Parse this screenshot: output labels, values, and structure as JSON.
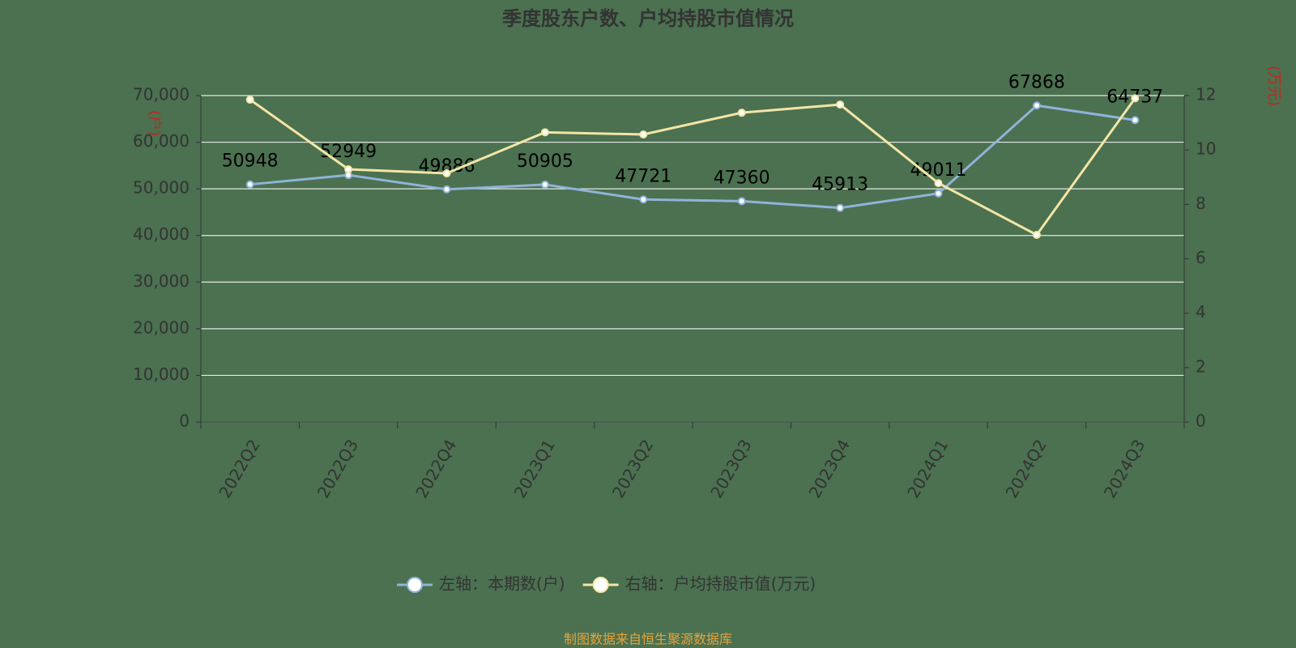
{
  "chart_data": {
    "type": "line",
    "title": "季度股东户数、户均持股市值情况",
    "y_label": "(户)",
    "y2_label": "(万元)",
    "source": "制图数据来自恒生聚源数据库",
    "categories": [
      "2022Q2",
      "2022Q3",
      "2022Q4",
      "2023Q1",
      "2023Q2",
      "2023Q3",
      "2023Q4",
      "2024Q1",
      "2024Q2",
      "2024Q3"
    ],
    "series": [
      {
        "name": "左轴：本期数(户)",
        "color": "#8fb3d9",
        "values": [
          50948,
          52949,
          49886,
          50905,
          47721,
          47360,
          45913,
          49011,
          67868,
          64737
        ],
        "show_labels": true
      },
      {
        "name": "右轴：户均持股市值(万元)",
        "color": "#f3e5a6",
        "axis": "y2",
        "values": [
          11.85,
          9.29,
          9.14,
          10.65,
          10.57,
          11.37,
          11.67,
          8.78,
          6.88,
          11.9
        ]
      }
    ],
    "ylim": [
      0,
      70000
    ],
    "yticks": [
      0,
      {
        "value": 10000,
        "label": "10,000"
      },
      {
        "value": 20000,
        "label": "20,000"
      },
      {
        "value": 30000,
        "label": "30,000"
      },
      {
        "value": 40000,
        "label": "40,000"
      },
      {
        "value": 50000,
        "label": "50,000"
      },
      {
        "value": 60000,
        "label": "60,000"
      },
      {
        "value": 70000,
        "label": "70,000"
      }
    ],
    "y2lim": [
      0,
      12
    ],
    "y2ticks": [
      0,
      2,
      4,
      6,
      8,
      10,
      12
    ],
    "grid": true
  }
}
